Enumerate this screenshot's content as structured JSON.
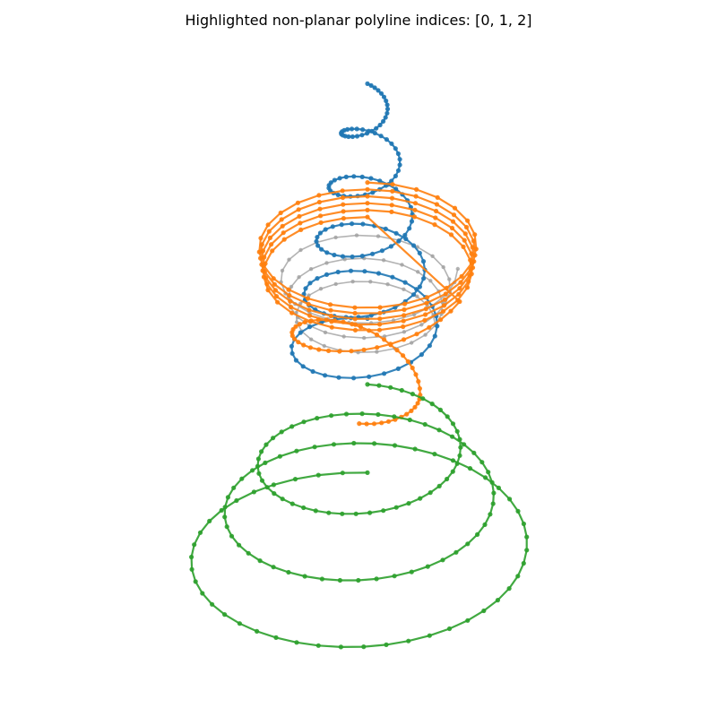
{
  "chart_data": {
    "type": "line",
    "title": "Highlighted non-planar polyline indices: [0, 1, 2]",
    "projection": "3d-oblique",
    "axes_visible": false,
    "grid": false,
    "legend": "none",
    "background_series": [
      {
        "center": [
          0,
          0,
          1.0
        ],
        "radius_start": 0.48,
        "radius_end": 0.36,
        "turns": 3,
        "z_end": 0.55,
        "points": 75
      }
    ],
    "series": [
      {
        "index": 0,
        "color": "#1f77b4",
        "kind": "conical-helix",
        "center": [
          0,
          0,
          0
        ],
        "radius_start": 0.09,
        "radius_end": 0.42,
        "turns": 5,
        "z_start": 2.4,
        "z_end": 0.25,
        "points": 150
      },
      {
        "index": 1,
        "color": "#ff7f0e",
        "kind": "inward-spiral-then-descent",
        "center": [
          0,
          0,
          0
        ],
        "radius_start": 0.58,
        "radius_end": 0.55,
        "turns": 5,
        "z_start": 1.2,
        "z_end": 0.95,
        "inner_loop": {
          "radius": 0.28,
          "z": 0.0
        },
        "points": 190
      },
      {
        "index": 2,
        "color": "#2ca02c",
        "kind": "conical-helix",
        "center": [
          0,
          0,
          0
        ],
        "radius_start": 0.45,
        "radius_end": 0.98,
        "turns": 3,
        "z_start": -0.3,
        "z_end": -1.45,
        "points": 140
      }
    ],
    "colors": {
      "highlight_0": "#1f77b4",
      "highlight_1": "#ff7f0e",
      "highlight_2": "#2ca02c",
      "other": "#a0a0a0"
    }
  }
}
